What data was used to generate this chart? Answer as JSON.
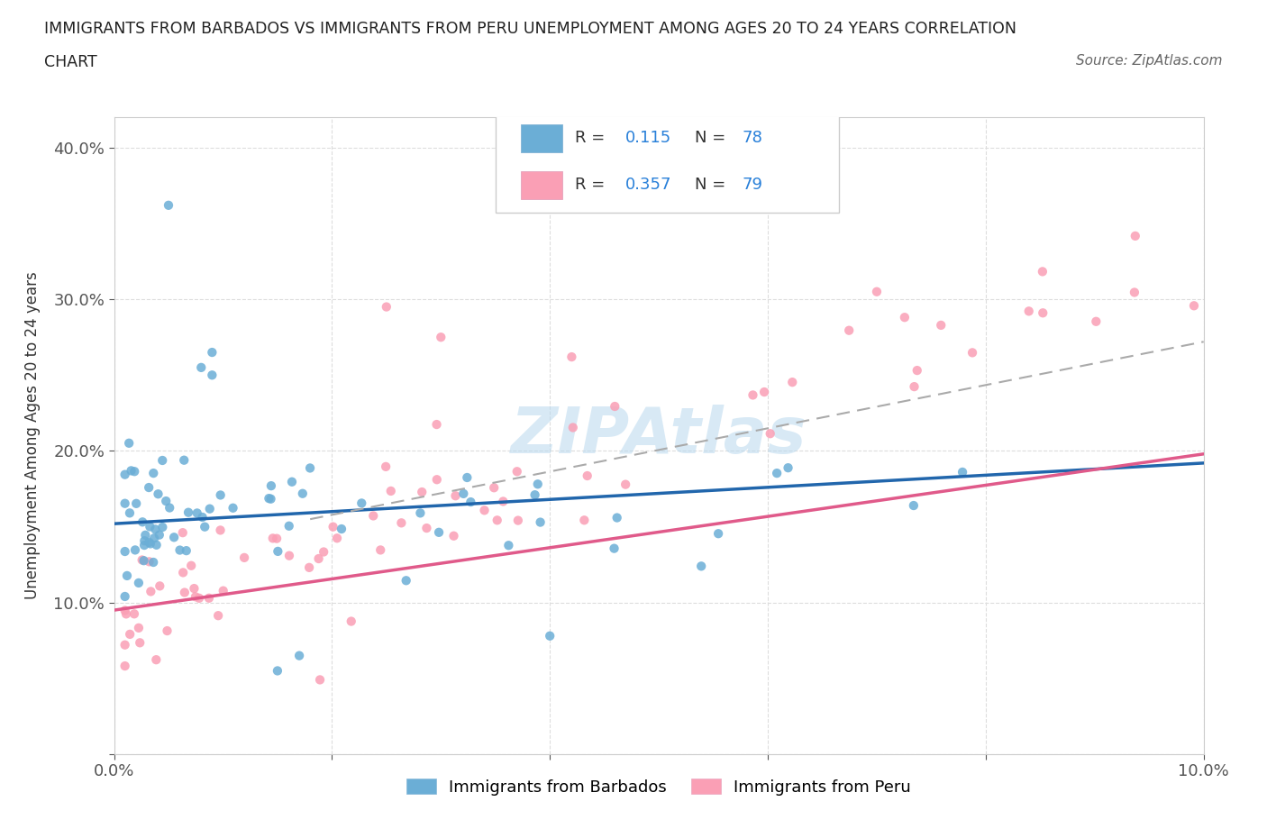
{
  "title_line1": "IMMIGRANTS FROM BARBADOS VS IMMIGRANTS FROM PERU UNEMPLOYMENT AMONG AGES 20 TO 24 YEARS CORRELATION",
  "title_line2": "CHART",
  "source": "Source: ZipAtlas.com",
  "ylabel": "Unemployment Among Ages 20 to 24 years",
  "xlim": [
    0.0,
    0.1
  ],
  "ylim": [
    0.0,
    0.42
  ],
  "barbados_color": "#6baed6",
  "peru_color": "#fa9fb5",
  "barbados_line_color": "#2166ac",
  "peru_line_color": "#e05a8a",
  "barbados_R": 0.115,
  "barbados_N": 78,
  "peru_R": 0.357,
  "peru_N": 79,
  "legend_label_barbados": "Immigrants from Barbados",
  "legend_label_peru": "Immigrants from Peru",
  "watermark": "ZIPAtlas",
  "blue_trend": [
    0.0,
    0.1,
    0.152,
    0.192
  ],
  "pink_trend": [
    0.0,
    0.1,
    0.095,
    0.198
  ],
  "dash_trend": [
    0.018,
    0.1,
    0.155,
    0.272
  ]
}
